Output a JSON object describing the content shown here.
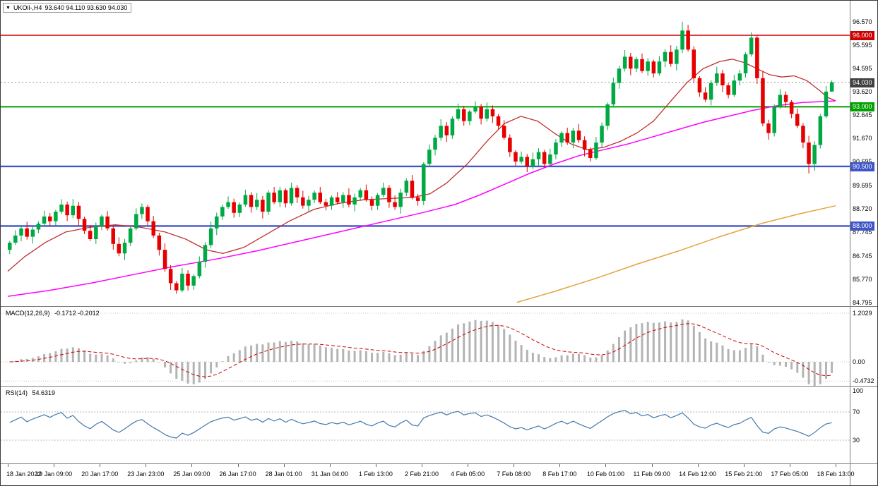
{
  "header": {
    "quick_trade_arrow": "▼",
    "symbol_title": "UKOil-,H4",
    "ohlc_readout": "93.640 94.110 93.630 94.030"
  },
  "chart_data": {
    "type": "candlestick",
    "symbol": "UKOil-",
    "timeframe": "H4",
    "last_ohlc": [
      93.64,
      94.11,
      93.63,
      94.03
    ],
    "price": {
      "axis_ticks": [
        "96.570",
        "95.595",
        "94.595",
        "93.620",
        "92.645",
        "91.670",
        "90.695",
        "89.695",
        "88.720",
        "87.745",
        "86.745",
        "85.770",
        "84.795"
      ],
      "levels": [
        {
          "value": 96.0,
          "label": "96.000",
          "color": "#cc0000",
          "width": 1.6
        },
        {
          "value": 93.0,
          "label": "93.000",
          "color": "#00a000",
          "width": 2
        },
        {
          "value": 90.5,
          "label": "90.500",
          "color": "#4056c8",
          "width": 2.4
        },
        {
          "value": 88.0,
          "label": "88.000",
          "color": "#4056c8",
          "width": 2.4
        }
      ],
      "current_price": {
        "value": 94.03,
        "label": "94.030",
        "bg": "#404040"
      },
      "candles": {
        "first_open": 87.0,
        "bull_color": "#00a944",
        "bear_color": "#e60000",
        "wick_overrides": {
          "117": {
            "high": 96.57
          },
          "139": {
            "low": 90.2
          }
        },
        "closes": [
          87.3,
          87.6,
          87.9,
          87.55,
          87.85,
          88.1,
          88.4,
          88.2,
          88.6,
          88.9,
          88.45,
          88.85,
          88.3,
          87.8,
          87.45,
          88.0,
          88.4,
          87.9,
          87.25,
          86.85,
          87.3,
          87.9,
          88.5,
          88.8,
          88.2,
          87.6,
          87.0,
          86.2,
          85.6,
          85.3,
          86.0,
          85.5,
          85.9,
          86.5,
          87.2,
          87.9,
          88.4,
          88.8,
          89.0,
          88.55,
          88.9,
          89.3,
          88.8,
          89.1,
          88.6,
          89.4,
          89.0,
          89.5,
          88.95,
          89.6,
          89.2,
          88.85,
          89.1,
          89.4,
          89.0,
          88.85,
          89.2,
          89.0,
          89.3,
          88.9,
          89.2,
          89.5,
          89.1,
          88.85,
          89.3,
          89.6,
          89.0,
          88.8,
          89.4,
          89.9,
          89.2,
          89.05,
          90.6,
          91.2,
          91.7,
          92.2,
          91.8,
          92.5,
          92.9,
          92.4,
          92.8,
          93.0,
          92.5,
          92.9,
          92.6,
          92.2,
          91.7,
          91.1,
          90.7,
          90.9,
          90.5,
          90.8,
          91.1,
          90.6,
          91.0,
          91.5,
          91.9,
          91.5,
          92.0,
          91.6,
          91.2,
          90.85,
          91.5,
          92.2,
          93.1,
          94.0,
          94.6,
          95.1,
          94.6,
          95.0,
          94.5,
          94.9,
          94.4,
          94.9,
          95.3,
          94.8,
          95.4,
          96.2,
          95.4,
          94.2,
          93.6,
          93.3,
          94.0,
          94.4,
          93.9,
          93.5,
          94.1,
          94.4,
          95.2,
          95.9,
          94.2,
          92.3,
          91.9,
          93.0,
          93.5,
          93.2,
          92.7,
          92.2,
          91.5,
          90.6,
          91.4,
          92.6,
          93.64,
          94.03
        ]
      },
      "ma_lines": [
        {
          "name": "ma-fast-red-line",
          "color": "#c03030",
          "width": 1.3,
          "points": [
            [
              0.0,
              86.1
            ],
            [
              0.02,
              86.7
            ],
            [
              0.045,
              87.3
            ],
            [
              0.07,
              87.75
            ],
            [
              0.1,
              87.95
            ],
            [
              0.13,
              88.05
            ],
            [
              0.16,
              87.95
            ],
            [
              0.19,
              87.75
            ],
            [
              0.215,
              87.45
            ],
            [
              0.24,
              87.0
            ],
            [
              0.26,
              86.85
            ],
            [
              0.285,
              87.1
            ],
            [
              0.31,
              87.6
            ],
            [
              0.34,
              88.2
            ],
            [
              0.37,
              88.7
            ],
            [
              0.4,
              88.95
            ],
            [
              0.43,
              89.1
            ],
            [
              0.46,
              89.15
            ],
            [
              0.49,
              89.2
            ],
            [
              0.51,
              89.35
            ],
            [
              0.53,
              89.8
            ],
            [
              0.555,
              90.6
            ],
            [
              0.58,
              91.6
            ],
            [
              0.6,
              92.3
            ],
            [
              0.62,
              92.6
            ],
            [
              0.64,
              92.4
            ],
            [
              0.66,
              91.9
            ],
            [
              0.68,
              91.45
            ],
            [
              0.7,
              91.2
            ],
            [
              0.72,
              91.3
            ],
            [
              0.74,
              91.55
            ],
            [
              0.76,
              91.9
            ],
            [
              0.78,
              92.4
            ],
            [
              0.8,
              93.2
            ],
            [
              0.82,
              94.0
            ],
            [
              0.84,
              94.6
            ],
            [
              0.86,
              94.9
            ],
            [
              0.875,
              95.0
            ],
            [
              0.89,
              94.85
            ],
            [
              0.905,
              94.6
            ],
            [
              0.92,
              94.35
            ],
            [
              0.935,
              94.25
            ],
            [
              0.95,
              94.3
            ],
            [
              0.965,
              94.1
            ],
            [
              0.98,
              93.7
            ],
            [
              0.99,
              93.4
            ],
            [
              1.0,
              93.25
            ]
          ]
        },
        {
          "name": "ma-slow-magenta-line",
          "color": "#ff00ff",
          "width": 1.5,
          "points": [
            [
              0.0,
              85.05
            ],
            [
              0.05,
              85.3
            ],
            [
              0.1,
              85.6
            ],
            [
              0.15,
              85.95
            ],
            [
              0.2,
              86.3
            ],
            [
              0.25,
              86.6
            ],
            [
              0.3,
              86.95
            ],
            [
              0.35,
              87.35
            ],
            [
              0.4,
              87.75
            ],
            [
              0.45,
              88.15
            ],
            [
              0.5,
              88.55
            ],
            [
              0.54,
              88.9
            ],
            [
              0.57,
              89.3
            ],
            [
              0.6,
              89.75
            ],
            [
              0.63,
              90.2
            ],
            [
              0.66,
              90.6
            ],
            [
              0.69,
              90.95
            ],
            [
              0.72,
              91.2
            ],
            [
              0.75,
              91.45
            ],
            [
              0.78,
              91.75
            ],
            [
              0.81,
              92.05
            ],
            [
              0.84,
              92.35
            ],
            [
              0.87,
              92.6
            ],
            [
              0.9,
              92.85
            ],
            [
              0.93,
              93.05
            ],
            [
              0.96,
              93.18
            ],
            [
              1.0,
              93.25
            ]
          ]
        },
        {
          "name": "ma-long-orange-line",
          "color": "#e6a23c",
          "width": 1.5,
          "points": [
            [
              0.615,
              84.8
            ],
            [
              0.66,
              85.25
            ],
            [
              0.71,
              85.8
            ],
            [
              0.76,
              86.4
            ],
            [
              0.81,
              86.95
            ],
            [
              0.86,
              87.55
            ],
            [
              0.91,
              88.1
            ],
            [
              0.955,
              88.5
            ],
            [
              1.0,
              88.85
            ]
          ]
        }
      ]
    },
    "macd": {
      "label": "MACD(12,26,9)",
      "values_text": "-0.1712 -0.2012",
      "params": [
        12,
        26,
        9
      ],
      "axis_ticks": [
        "1.2029",
        "0.00",
        "-0.4732"
      ],
      "histogram_color": "#b4b4b4",
      "signal_color": "#cc0000"
    },
    "rsi": {
      "label": "RSI(14)",
      "value_text": "54.6319",
      "period": 14,
      "axis_ticks": [
        "100",
        "70",
        "30"
      ],
      "level_lines": [
        70,
        30
      ],
      "line_color": "#4079ae"
    },
    "time_axis": {
      "labels": [
        "18 Jan 2022",
        "19 Jan 09:00",
        "20 Jan 17:00",
        "23 Jan 23:00",
        "25 Jan 09:00",
        "26 Jan 17:00",
        "28 Jan 01:00",
        "31 Jan 04:00",
        "1 Feb 13:00",
        "2 Feb 21:00",
        "4 Feb 05:00",
        "7 Feb 08:00",
        "8 Feb 17:00",
        "10 Feb 01:00",
        "11 Feb 09:00",
        "14 Feb 12:00",
        "15 Feb 21:00",
        "17 Feb 05:00",
        "18 Feb 13:00"
      ]
    }
  }
}
